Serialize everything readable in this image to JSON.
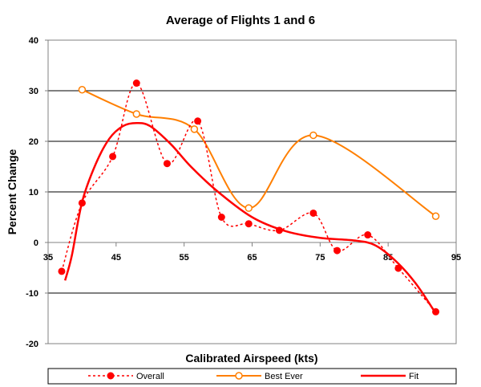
{
  "chart_data": {
    "type": "line",
    "title": "Average of Flights 1 and 6",
    "xlabel": "Calibrated Airspeed (kts)",
    "ylabel": "Percent Change",
    "xlim": [
      35,
      95
    ],
    "ylim": [
      -20,
      40
    ],
    "x_ticks": [
      "35",
      "45",
      "55",
      "65",
      "75",
      "85",
      "95"
    ],
    "y_ticks": [
      "40",
      "30",
      "20",
      "10",
      "0",
      "-10",
      "-20"
    ],
    "grid": "horizontal",
    "legend_position": "bottom",
    "series": [
      {
        "name": "Overall",
        "color": "#ff0000",
        "style": "dotted",
        "marker": "filled-circle",
        "x": [
          37,
          40,
          44.5,
          48,
          52.5,
          57,
          60.5,
          64.5,
          69,
          74,
          77.5,
          82,
          86.5,
          92
        ],
        "y": [
          -5.7,
          7.8,
          17,
          31.5,
          15.6,
          24,
          5,
          3.7,
          2.4,
          5.8,
          -1.6,
          1.5,
          -5.1,
          -13.7
        ]
      },
      {
        "name": "Best Ever",
        "color": "#ff7f00",
        "style": "solid",
        "marker": "open-circle",
        "x": [
          40,
          48,
          56.5,
          64.5,
          74,
          92
        ],
        "y": [
          30.2,
          25.4,
          22.4,
          6.8,
          21.2,
          5.2
        ]
      },
      {
        "name": "Fit",
        "color": "#ff0000",
        "style": "solid-thick",
        "marker": "none",
        "x": [
          37.5,
          38.5,
          40,
          42,
          44,
          46,
          48,
          50,
          53,
          56,
          60,
          65,
          70,
          75,
          80,
          83,
          86,
          89,
          92
        ],
        "y": [
          -7.5,
          -2.5,
          8,
          15.5,
          20.5,
          23,
          23.6,
          23,
          19.5,
          15,
          10,
          5,
          2.2,
          0.9,
          0.4,
          -0.5,
          -3.5,
          -8,
          -14
        ]
      }
    ]
  }
}
